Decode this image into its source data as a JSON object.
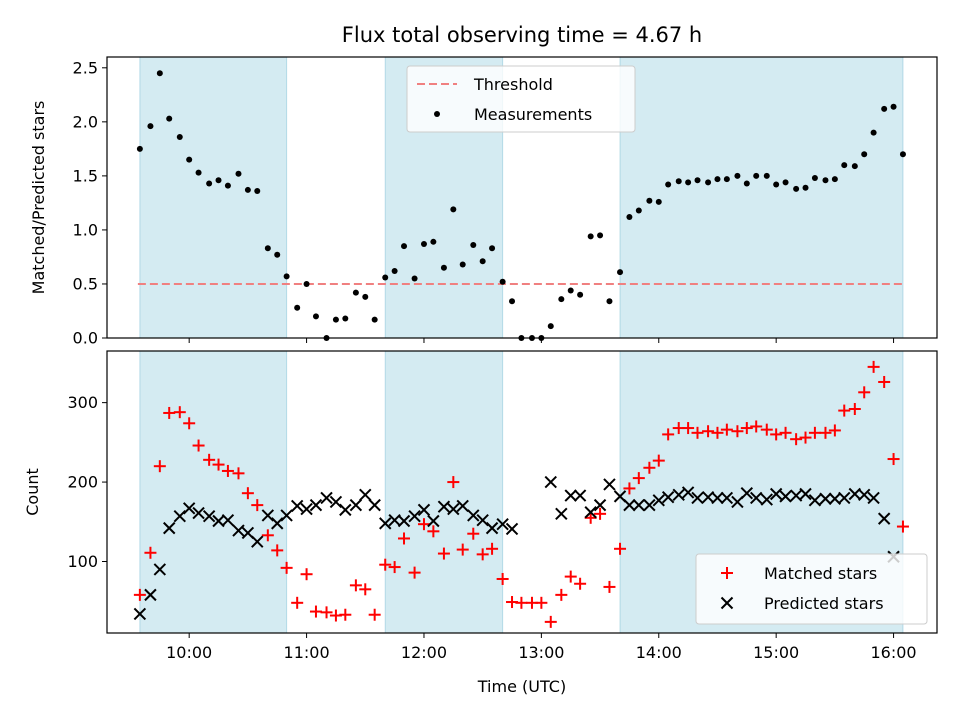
{
  "chart_data": {
    "title": "Flux total observing time = 4.67 h",
    "type": "scatter",
    "xlabel": "Time (UTC)",
    "xtick_labels": [
      "10:00",
      "11:00",
      "12:00",
      "13:00",
      "14:00",
      "15:00",
      "16:00"
    ],
    "xticks_hours": [
      10,
      11,
      12,
      13,
      14,
      15,
      16
    ],
    "xlim_hours": [
      9.3,
      16.37
    ],
    "shaded_intervals_hours": [
      [
        9.58,
        10.83
      ],
      [
        11.67,
        12.67
      ],
      [
        13.67,
        16.08
      ]
    ],
    "shade_color": "#add8e6",
    "grid": false,
    "panels": [
      {
        "ylabel": "Matched/Predicted stars",
        "ylim": [
          0,
          2.6
        ],
        "yticks": [
          0,
          0.5,
          1.0,
          1.5,
          2.0,
          2.5
        ],
        "ytick_labels": [
          "0.0",
          "0.5",
          "1.0",
          "1.5",
          "2.0",
          "2.5"
        ],
        "legend": "top-center",
        "lines": [
          {
            "name": "Threshold",
            "y": 0.5,
            "style": "dashed",
            "color": "#f08080"
          }
        ],
        "series": [
          {
            "name": "Measurements",
            "marker": "dot",
            "color": "#000000",
            "x": [
              9.58,
              9.67,
              9.75,
              9.83,
              9.92,
              10.0,
              10.08,
              10.17,
              10.25,
              10.33,
              10.42,
              10.5,
              10.58,
              10.67,
              10.75,
              10.83,
              10.92,
              11.0,
              11.08,
              11.17,
              11.25,
              11.33,
              11.42,
              11.5,
              11.58,
              11.67,
              11.75,
              11.83,
              11.92,
              12.0,
              12.08,
              12.17,
              12.25,
              12.33,
              12.42,
              12.5,
              12.58,
              12.67,
              12.75,
              12.83,
              12.92,
              13.0,
              13.08,
              13.17,
              13.25,
              13.33,
              13.42,
              13.5,
              13.58,
              13.67,
              13.75,
              13.83,
              13.92,
              14.0,
              14.08,
              14.17,
              14.25,
              14.33,
              14.42,
              14.5,
              14.58,
              14.67,
              14.75,
              14.83,
              14.92,
              15.0,
              15.08,
              15.17,
              15.25,
              15.33,
              15.42,
              15.5,
              15.58,
              15.67,
              15.75,
              15.83,
              15.92,
              16.0,
              16.08
            ],
            "y": [
              1.75,
              1.96,
              2.45,
              2.03,
              1.86,
              1.65,
              1.53,
              1.43,
              1.46,
              1.41,
              1.52,
              1.37,
              1.36,
              0.83,
              0.77,
              0.57,
              0.28,
              0.5,
              0.2,
              0.0,
              0.17,
              0.18,
              0.42,
              0.38,
              0.17,
              0.56,
              0.62,
              0.85,
              0.55,
              0.87,
              0.89,
              0.65,
              1.19,
              0.68,
              0.86,
              0.71,
              0.83,
              0.52,
              0.34,
              0.0,
              0.0,
              0.0,
              0.11,
              0.36,
              0.44,
              0.4,
              0.94,
              0.95,
              0.34,
              0.61,
              1.12,
              1.18,
              1.27,
              1.26,
              1.42,
              1.45,
              1.44,
              1.46,
              1.44,
              1.47,
              1.47,
              1.5,
              1.43,
              1.5,
              1.5,
              1.42,
              1.44,
              1.38,
              1.39,
              1.48,
              1.46,
              1.47,
              1.6,
              1.59,
              1.7,
              1.9,
              2.12,
              2.14,
              1.7
            ]
          }
        ]
      },
      {
        "ylabel": "Count",
        "ylim": [
          10,
          365
        ],
        "yticks": [
          100,
          200,
          300
        ],
        "ytick_labels": [
          "100",
          "200",
          "300"
        ],
        "legend": "bottom-right",
        "series": [
          {
            "name": "Matched stars",
            "marker": "plus",
            "color": "#ff0000",
            "x": [
              9.58,
              9.67,
              9.75,
              9.83,
              9.92,
              10.0,
              10.08,
              10.17,
              10.25,
              10.33,
              10.42,
              10.5,
              10.58,
              10.67,
              10.75,
              10.83,
              10.92,
              11.0,
              11.08,
              11.17,
              11.25,
              11.33,
              11.42,
              11.5,
              11.58,
              11.67,
              11.75,
              11.83,
              11.92,
              12.0,
              12.08,
              12.17,
              12.25,
              12.33,
              12.42,
              12.5,
              12.58,
              12.67,
              12.75,
              12.83,
              12.92,
              13.0,
              13.08,
              13.17,
              13.25,
              13.33,
              13.42,
              13.5,
              13.58,
              13.67,
              13.75,
              13.83,
              13.92,
              14.0,
              14.08,
              14.17,
              14.25,
              14.33,
              14.42,
              14.5,
              14.58,
              14.67,
              14.75,
              14.83,
              14.92,
              15.0,
              15.08,
              15.17,
              15.25,
              15.33,
              15.42,
              15.5,
              15.58,
              15.67,
              15.75,
              15.83,
              15.92,
              16.0,
              16.08
            ],
            "y": [
              58,
              111,
              220,
              287,
              288,
              274,
              246,
              228,
              222,
              214,
              211,
              186,
              171,
              133,
              114,
              92,
              48,
              84,
              37,
              36,
              32,
              33,
              70,
              65,
              33,
              96,
              93,
              129,
              86,
              147,
              138,
              110,
              200,
              115,
              135,
              109,
              116,
              78,
              49,
              48,
              48,
              48,
              24,
              58,
              81,
              72,
              155,
              160,
              68,
              116,
              192,
              205,
              218,
              227,
              260,
              268,
              268,
              262,
              264,
              262,
              266,
              264,
              268,
              270,
              266,
              260,
              262,
              254,
              256,
              262,
              262,
              265,
              290,
              292,
              313,
              345,
              326,
              229,
              144
            ]
          },
          {
            "name": "Predicted stars",
            "marker": "x",
            "color": "#000000",
            "x": [
              9.58,
              9.67,
              9.75,
              9.83,
              9.92,
              10.0,
              10.08,
              10.17,
              10.25,
              10.33,
              10.42,
              10.5,
              10.58,
              10.67,
              10.75,
              10.83,
              10.92,
              11.0,
              11.08,
              11.17,
              11.25,
              11.33,
              11.42,
              11.5,
              11.58,
              11.67,
              11.75,
              11.83,
              11.92,
              12.0,
              12.08,
              12.17,
              12.25,
              12.33,
              12.42,
              12.5,
              12.58,
              12.67,
              12.75,
              13.08,
              13.17,
              13.25,
              13.33,
              13.42,
              13.5,
              13.58,
              13.67,
              13.75,
              13.83,
              13.92,
              14.0,
              14.08,
              14.17,
              14.25,
              14.33,
              14.42,
              14.5,
              14.58,
              14.67,
              14.75,
              14.83,
              14.92,
              15.0,
              15.08,
              15.17,
              15.25,
              15.33,
              15.42,
              15.5,
              15.58,
              15.67,
              15.75,
              15.83,
              15.92,
              16.0
            ],
            "y": [
              34,
              58,
              90,
              142,
              157,
              167,
              161,
              157,
              151,
              152,
              139,
              136,
              125,
              158,
              148,
              158,
              170,
              166,
              171,
              180,
              175,
              165,
              171,
              184,
              171,
              148,
              152,
              151,
              157,
              165,
              151,
              169,
              166,
              170,
              158,
              152,
              142,
              147,
              141,
              200,
              160,
              183,
              183,
              162,
              171,
              197,
              182,
              171,
              171,
              171,
              177,
              181,
              184,
              187,
              180,
              181,
              180,
              180,
              175,
              186,
              180,
              178,
              185,
              182,
              183,
              185,
              177,
              179,
              179,
              180,
              185,
              184,
              180,
              154,
              106
            ]
          }
        ]
      }
    ]
  }
}
